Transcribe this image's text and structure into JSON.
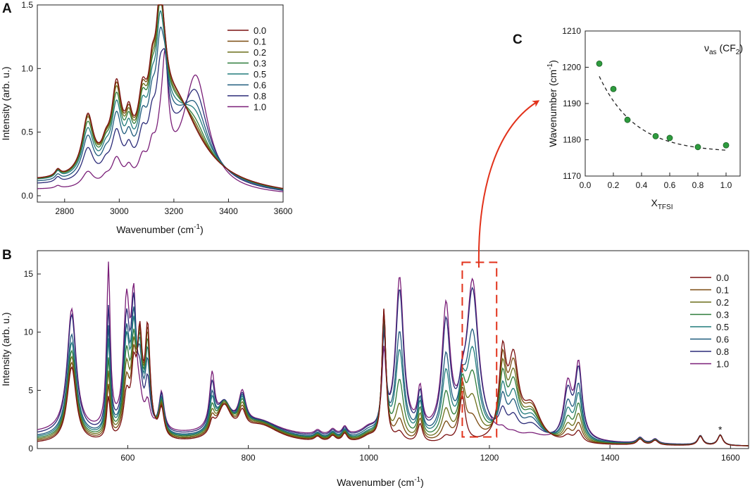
{
  "panels": {
    "A": {
      "letter": "A"
    },
    "B": {
      "letter": "B"
    },
    "C": {
      "letter": "C"
    }
  },
  "chart_data": [
    {
      "id": "A",
      "type": "line",
      "xlabel_main": "Wavenumber (cm",
      "xlabel_sup": "-1",
      "xlabel_tail": ")",
      "ylabel": "Intensity (arb. u.)",
      "xlim": [
        2700,
        3600
      ],
      "ylim": [
        -0.05,
        1.5
      ],
      "xticks": [
        2800,
        3000,
        3200,
        3400,
        3600
      ],
      "yticks": [
        0.0,
        0.5,
        1.0,
        1.5
      ],
      "ytick_labels": [
        "0.0",
        "0.5",
        "1.0",
        "1.5"
      ],
      "legend": [
        "0.0",
        "0.1",
        "0.2",
        "0.3",
        "0.5",
        "0.6",
        "0.8",
        "1.0"
      ],
      "peaks": [
        {
          "center": 2775,
          "width": 12,
          "heights": [
            0.05,
            0.05,
            0.05,
            0.05,
            0.05,
            0.04,
            0.04,
            0.02
          ]
        },
        {
          "center": 2885,
          "width": 25,
          "heights": [
            0.45,
            0.44,
            0.43,
            0.4,
            0.36,
            0.32,
            0.25,
            0.12
          ]
        },
        {
          "center": 2950,
          "width": 18,
          "heights": [
            0.12,
            0.12,
            0.12,
            0.12,
            0.11,
            0.1,
            0.08,
            0.05
          ]
        },
        {
          "center": 2990,
          "width": 22,
          "heights": [
            0.6,
            0.58,
            0.56,
            0.52,
            0.48,
            0.42,
            0.33,
            0.2
          ]
        },
        {
          "center": 3035,
          "width": 15,
          "heights": [
            0.25,
            0.24,
            0.23,
            0.22,
            0.2,
            0.18,
            0.15,
            0.1
          ]
        },
        {
          "center": 3085,
          "width": 18,
          "heights": [
            0.35,
            0.34,
            0.33,
            0.32,
            0.3,
            0.27,
            0.22,
            0.15
          ]
        },
        {
          "center": 3120,
          "width": 15,
          "heights": [
            0.32,
            0.31,
            0.3,
            0.29,
            0.28,
            0.26,
            0.22,
            0.18
          ]
        },
        {
          "center": 3150,
          "width": 18,
          "heights": [
            0.88,
            0.87,
            0.85,
            0.82,
            0.76,
            0.66,
            0.5,
            0.2
          ]
        },
        {
          "center": 3168,
          "width": 14,
          "heights": [
            0.08,
            0.1,
            0.12,
            0.15,
            0.2,
            0.28,
            0.42,
            0.78
          ]
        },
        {
          "center": 3200,
          "width": 115,
          "heights": [
            0.7,
            0.68,
            0.64,
            0.6,
            0.52,
            0.44,
            0.3,
            0.05
          ]
        },
        {
          "center": 3280,
          "width": 55,
          "heights": [
            0.0,
            0.03,
            0.08,
            0.14,
            0.26,
            0.38,
            0.58,
            0.88
          ]
        }
      ],
      "baseline_start": [
        0.09,
        0.09,
        0.09,
        0.09,
        0.09,
        0.08,
        0.07,
        0.04
      ],
      "baseline_end": [
        0.0,
        0.0,
        0.0,
        0.0,
        0.0,
        0.0,
        0.0,
        0.0
      ]
    },
    {
      "id": "B",
      "type": "line",
      "xlabel_main": "Wavenumber (cm",
      "xlabel_sup": "-1",
      "xlabel_tail": ")",
      "ylabel": "Intensity (arb. u.)",
      "xlim": [
        450,
        1630
      ],
      "ylim": [
        0,
        17
      ],
      "xticks": [
        600,
        800,
        1000,
        1200,
        1400,
        1600
      ],
      "yticks": [
        0,
        5,
        10,
        15
      ],
      "legend": [
        "0.0",
        "0.1",
        "0.2",
        "0.3",
        "0.5",
        "0.6",
        "0.8",
        "1.0"
      ],
      "annotation": "*",
      "annotation_x": 1583,
      "annotation_y": 1.8,
      "highlight_box": {
        "x0": 1155,
        "x1": 1212,
        "y0": 1.0,
        "y1": 16.0
      },
      "peaks": [
        {
          "center": 507,
          "width": 9,
          "heights": [
            6.5,
            6.8,
            7.2,
            7.6,
            8.2,
            8.8,
            10.3,
            10.6
          ]
        },
        {
          "center": 568,
          "width": 3.5,
          "heights": [
            3.6,
            4.5,
            5.5,
            6.5,
            8.0,
            9.0,
            10.5,
            14.0
          ]
        },
        {
          "center": 598,
          "width": 6,
          "heights": [
            3.5,
            4.5,
            5.5,
            6.5,
            7.5,
            8.0,
            9.0,
            10.5
          ]
        },
        {
          "center": 610,
          "width": 5,
          "heights": [
            5.0,
            5.5,
            6.0,
            6.5,
            7.5,
            8.3,
            9.5,
            10.3
          ]
        },
        {
          "center": 620,
          "width": 5,
          "heights": [
            8.0,
            7.5,
            7.0,
            6.5,
            5.8,
            5.0,
            3.5,
            1.5
          ]
        },
        {
          "center": 633,
          "width": 5,
          "heights": [
            9.0,
            8.5,
            8.0,
            7.3,
            6.5,
            5.5,
            4.0,
            2.0
          ]
        },
        {
          "center": 656,
          "width": 5,
          "heights": [
            2.5,
            2.6,
            2.7,
            2.8,
            2.9,
            3.0,
            3.2,
            3.3
          ]
        },
        {
          "center": 740,
          "width": 5,
          "heights": [
            1.0,
            1.3,
            1.6,
            2.0,
            2.6,
            3.0,
            3.8,
            4.5
          ]
        },
        {
          "center": 760,
          "width": 14,
          "heights": [
            2.8,
            2.8,
            2.8,
            2.8,
            2.7,
            2.6,
            2.5,
            2.3
          ]
        },
        {
          "center": 790,
          "width": 7,
          "heights": [
            1.6,
            1.8,
            2.0,
            2.2,
            2.4,
            2.5,
            2.6,
            2.8
          ]
        },
        {
          "center": 820,
          "width": 40,
          "heights": [
            1.5,
            1.5,
            1.5,
            1.5,
            1.4,
            1.4,
            1.3,
            1.2
          ]
        },
        {
          "center": 915,
          "width": 6,
          "heights": [
            0.4,
            0.4,
            0.4,
            0.4,
            0.4,
            0.4,
            0.4,
            0.4
          ]
        },
        {
          "center": 940,
          "width": 6,
          "heights": [
            0.5,
            0.5,
            0.5,
            0.5,
            0.5,
            0.5,
            0.5,
            0.5
          ]
        },
        {
          "center": 960,
          "width": 5,
          "heights": [
            0.7,
            0.7,
            0.7,
            0.7,
            0.7,
            0.7,
            0.7,
            0.7
          ]
        },
        {
          "center": 1000,
          "width": 15,
          "heights": [
            0.5,
            0.5,
            0.5,
            0.5,
            0.5,
            0.6,
            0.6,
            0.6
          ]
        },
        {
          "center": 1025,
          "width": 4,
          "heights": [
            11.4,
            11.2,
            10.8,
            10.4,
            9.8,
            9.0,
            8.0,
            6.5
          ]
        },
        {
          "center": 1051,
          "width": 8,
          "heights": [
            0.8,
            1.8,
            3.0,
            5.0,
            7.5,
            9.0,
            12.5,
            13.5
          ]
        },
        {
          "center": 1085,
          "width": 5,
          "heights": [
            1.6,
            1.9,
            2.2,
            2.5,
            2.8,
            3.0,
            3.2,
            3.5
          ]
        },
        {
          "center": 1128,
          "width": 8,
          "heights": [
            0.5,
            1.5,
            2.5,
            3.8,
            5.5,
            6.8,
            9.5,
            10.8
          ]
        },
        {
          "center": 1155,
          "width": 6,
          "heights": [
            4.0,
            4.0,
            3.8,
            3.6,
            3.2,
            2.8,
            2.2,
            1.5
          ]
        },
        {
          "center": 1172,
          "width": 12,
          "heights": [
            0.0,
            1.8,
            3.5,
            5.5,
            7.5,
            9.0,
            12.5,
            13.3
          ]
        },
        {
          "center": 1222,
          "width": 7,
          "heights": [
            7.0,
            6.3,
            5.6,
            4.8,
            3.8,
            3.0,
            1.8,
            0.4
          ]
        },
        {
          "center": 1240,
          "width": 10,
          "heights": [
            6.5,
            5.8,
            5.0,
            4.3,
            3.4,
            2.6,
            1.5,
            0.3
          ]
        },
        {
          "center": 1270,
          "width": 18,
          "heights": [
            3.0,
            2.8,
            2.5,
            2.3,
            2.0,
            1.7,
            1.2,
            0.4
          ]
        },
        {
          "center": 1330,
          "width": 8,
          "heights": [
            0.5,
            0.9,
            1.3,
            1.8,
            2.4,
            3.0,
            4.0,
            4.6
          ]
        },
        {
          "center": 1348,
          "width": 7,
          "heights": [
            1.0,
            1.6,
            2.3,
            3.1,
            3.9,
            4.6,
            5.9,
            6.3
          ]
        },
        {
          "center": 1450,
          "width": 6,
          "heights": [
            0.5,
            0.5,
            0.5,
            0.5,
            0.5,
            0.5,
            0.5,
            0.5
          ]
        },
        {
          "center": 1475,
          "width": 6,
          "heights": [
            0.4,
            0.4,
            0.4,
            0.4,
            0.4,
            0.4,
            0.4,
            0.4
          ]
        },
        {
          "center": 1550,
          "width": 5,
          "heights": [
            0.8,
            0.8,
            0.8,
            0.8,
            0.8,
            0.8,
            0.8,
            0.8
          ]
        },
        {
          "center": 1583,
          "width": 5,
          "heights": [
            0.9,
            0.9,
            0.9,
            0.9,
            0.9,
            0.9,
            0.9,
            0.9
          ]
        }
      ],
      "baseline_start": [
        0.4,
        0.5,
        0.6,
        0.7,
        0.8,
        0.9,
        1.1,
        1.3
      ],
      "baseline_end": [
        0.2,
        0.2,
        0.2,
        0.2,
        0.2,
        0.2,
        0.2,
        0.2
      ]
    },
    {
      "id": "C",
      "type": "scatter",
      "xlabel_main": "X",
      "xlabel_sub": "TFSI",
      "ylabel_main": "Wavenumber (cm",
      "ylabel_sup": "-1",
      "ylabel_tail": ")",
      "annotation_main": "ν",
      "annotation_sub": "as",
      "annotation_mid": " (CF",
      "annotation_sub2": "2",
      "annotation_tail": ")",
      "xlim": [
        0.0,
        1.1
      ],
      "ylim": [
        1170,
        1210
      ],
      "xticks": [
        0.0,
        0.2,
        0.4,
        0.6,
        0.8,
        1.0
      ],
      "xtick_labels": [
        "0.0",
        "0.2",
        "0.4",
        "0.6",
        "0.8",
        "1.0"
      ],
      "yticks": [
        1170,
        1180,
        1190,
        1200,
        1210
      ],
      "x": [
        0.1,
        0.2,
        0.3,
        0.5,
        0.6,
        0.8,
        1.0
      ],
      "y": [
        1201.0,
        1194.0,
        1185.5,
        1181.0,
        1180.5,
        1178.0,
        1178.5
      ],
      "fit": {
        "type": "exponential",
        "a": 1176.5,
        "b": 31.0,
        "k": 3.9
      }
    }
  ],
  "colors": {
    "series": [
      "#7a1010",
      "#7a4a10",
      "#6b6f1a",
      "#2e7c3a",
      "#207c7c",
      "#1f5b7d",
      "#2b2b78",
      "#7a1f78"
    ],
    "marker": "#2e9b3e",
    "highlight": "#e2321b",
    "fit_line": "#222222",
    "axis": "#222222"
  }
}
